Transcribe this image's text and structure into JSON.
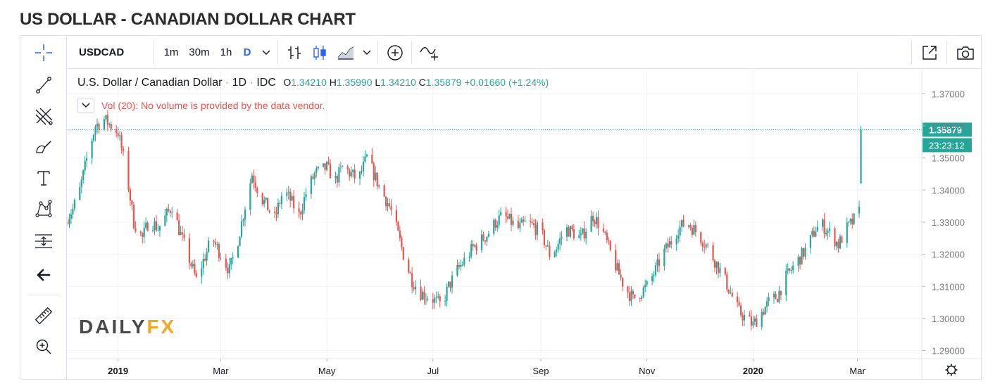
{
  "page": {
    "title": "US DOLLAR - CANADIAN DOLLAR CHART"
  },
  "toolbar": {
    "symbol": "USDCAD",
    "intervals": [
      "1m",
      "30m",
      "1h",
      "D"
    ],
    "active_interval": "D",
    "accent_color": "#2962ff"
  },
  "left_tools": [
    "crosshair-icon",
    "trend-line-icon",
    "fib-icon",
    "brush-icon",
    "text-icon",
    "pattern-icon",
    "measure-levels-icon",
    "back-arrow-icon",
    "ruler-icon",
    "zoom-in-icon"
  ],
  "legend": {
    "name": "U.S. Dollar / Canadian Dollar",
    "interval": "1D",
    "source": "IDC",
    "o_label": "O",
    "o": "1.34210",
    "h_label": "H",
    "h": "1.35990",
    "l_label": "L",
    "l": "1.34210",
    "c_label": "C",
    "c": "1.35879",
    "change": "+0.01660 (+1.24%)"
  },
  "volume_note": "Vol (20): No volume is provided by the data vendor.",
  "logo": {
    "part1": "DAILY",
    "part2": "FX"
  },
  "chart_data": {
    "type": "candlestick",
    "symbol": "USDCAD",
    "ylim": [
      1.2875,
      1.3775
    ],
    "grid": true,
    "y_ticks": [
      "1.37000",
      "1.36000",
      "1.35000",
      "1.34000",
      "1.33000",
      "1.32000",
      "1.31000",
      "1.30000",
      "1.29000"
    ],
    "x_ticks": [
      "2019",
      "Mar",
      "May",
      "Jul",
      "Sep",
      "Nov",
      "2020",
      "Mar"
    ],
    "x_tick_dates": [
      "2019-01-01",
      "2019-03-01",
      "2019-05-01",
      "2019-07-01",
      "2019-09-01",
      "2019-11-01",
      "2020-01-01",
      "2020-03-01"
    ],
    "x_range": [
      "2018-12-03",
      "2020-04-07"
    ],
    "last_price": "1.35879",
    "countdown": "23:23:12",
    "up_color": "#26a69a",
    "down_color": "#ef5350",
    "series": [
      {
        "month": "2018-12",
        "close": [
          1.33,
          1.334,
          1.34,
          1.352,
          1.36,
          1.362
        ]
      },
      {
        "month": "2019-01",
        "close": [
          1.358,
          1.345,
          1.33,
          1.325,
          1.331,
          1.328
        ]
      },
      {
        "month": "2019-02",
        "close": [
          1.335,
          1.326,
          1.32,
          1.312,
          1.318,
          1.325
        ]
      },
      {
        "month": "2019-03",
        "close": [
          1.32,
          1.315,
          1.322,
          1.335,
          1.345,
          1.338
        ]
      },
      {
        "month": "2019-04",
        "close": [
          1.331,
          1.34,
          1.337,
          1.332,
          1.339,
          1.345
        ]
      },
      {
        "month": "2019-05",
        "close": [
          1.347,
          1.343,
          1.347,
          1.345,
          1.343,
          1.35
        ]
      },
      {
        "month": "2019-06",
        "close": [
          1.34,
          1.335,
          1.328,
          1.318,
          1.312,
          1.308
        ]
      },
      {
        "month": "2019-07",
        "close": [
          1.306,
          1.304,
          1.31,
          1.315,
          1.318,
          1.322
        ]
      },
      {
        "month": "2019-08",
        "close": [
          1.326,
          1.33,
          1.332,
          1.33,
          1.328,
          1.33
        ]
      },
      {
        "month": "2019-09",
        "close": [
          1.327,
          1.32,
          1.322,
          1.328,
          1.327,
          1.325
        ]
      },
      {
        "month": "2019-10",
        "close": [
          1.332,
          1.328,
          1.322,
          1.315,
          1.31,
          1.306
        ]
      },
      {
        "month": "2019-11",
        "close": [
          1.31,
          1.315,
          1.32,
          1.324,
          1.328,
          1.33
        ]
      },
      {
        "month": "2019-12",
        "close": [
          1.326,
          1.322,
          1.318,
          1.313,
          1.308,
          1.302
        ]
      },
      {
        "month": "2020-01",
        "close": [
          1.298,
          1.302,
          1.305,
          1.307,
          1.312,
          1.316
        ]
      },
      {
        "month": "2020-02",
        "close": [
          1.322,
          1.328,
          1.329,
          1.326,
          1.323,
          1.328
        ]
      },
      {
        "month": "2020-03",
        "close": [
          1.332,
          1.338,
          1.342,
          1.344,
          1.35,
          1.35879
        ]
      }
    ]
  }
}
